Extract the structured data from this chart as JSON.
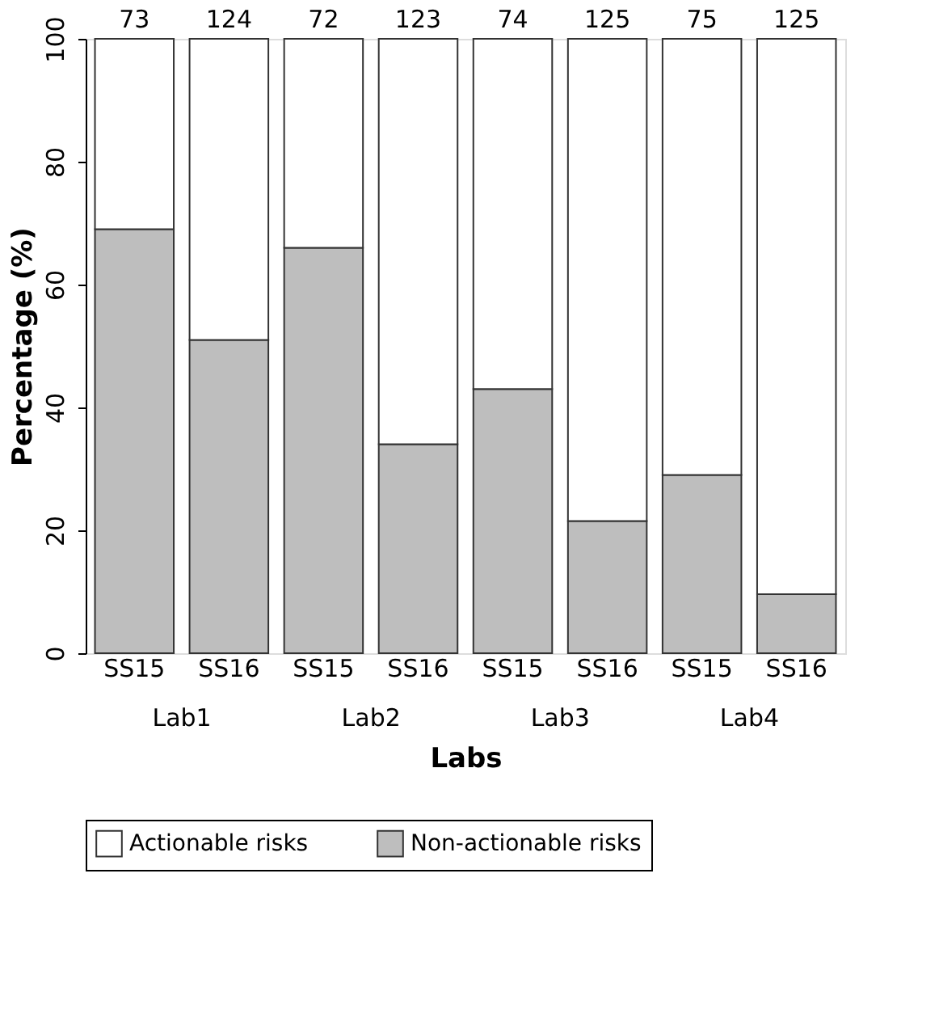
{
  "chart_data": {
    "type": "bar",
    "stacked": true,
    "xlabel": "Labs",
    "ylabel": "Percentage (%)",
    "categories": [
      "SS15",
      "SS16",
      "SS15",
      "SS16",
      "SS15",
      "SS16",
      "SS15",
      "SS16"
    ],
    "series": [
      {
        "name": "Non-actionable risks",
        "color": "#bebebe",
        "values": [
          69,
          51,
          66,
          34,
          43,
          21.5,
          29,
          9.6
        ]
      },
      {
        "name": "Actionable risks",
        "color": "#ffffff",
        "values": [
          31,
          49,
          34,
          66,
          57,
          78.5,
          71,
          90.4
        ]
      }
    ],
    "annotations": [
      "73",
      "124",
      "72",
      "123",
      "74",
      "125",
      "75",
      "125",
      "Lab1",
      "Lab2",
      "Lab3",
      "Lab4"
    ],
    "ylim": [
      0,
      100
    ],
    "yticks": [
      0,
      20,
      40,
      60,
      80,
      100
    ],
    "grid": false,
    "legend": "bottom"
  }
}
